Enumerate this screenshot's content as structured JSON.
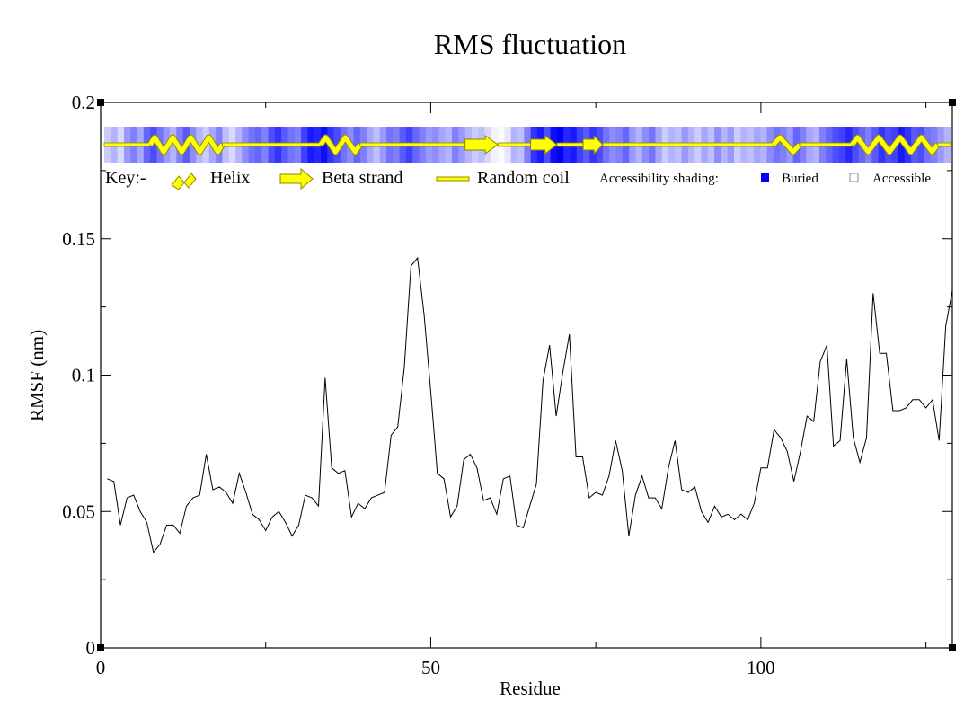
{
  "chart_data": {
    "type": "line",
    "title": "RMS fluctuation",
    "xlabel": "Residue",
    "ylabel": "RMSF (nm)",
    "xlim": [
      0,
      129
    ],
    "ylim": [
      0,
      0.2
    ],
    "x_ticks": [
      0,
      50,
      100
    ],
    "x_tick_labels": [
      "0",
      "50",
      "100"
    ],
    "y_ticks": [
      0,
      0.05,
      0.1,
      0.15,
      0.2
    ],
    "y_tick_labels": [
      "0",
      "0.05",
      "0.1",
      "0.15",
      "0.2"
    ],
    "grid": false,
    "series": [
      {
        "x": [
          1,
          2,
          3,
          4,
          5,
          6,
          7,
          8,
          9,
          10,
          11,
          12,
          13,
          14,
          15,
          16,
          17,
          18,
          19,
          20,
          21,
          22,
          23,
          24,
          25,
          26,
          27,
          28,
          29,
          30,
          31,
          32,
          33,
          34,
          35,
          36,
          37,
          38,
          39,
          40,
          41,
          42,
          43,
          44,
          45,
          46,
          47,
          48,
          49,
          50,
          51,
          52,
          53,
          54,
          55,
          56,
          57,
          58,
          59,
          60,
          61,
          62,
          63,
          64,
          65,
          66,
          67,
          68,
          69,
          70,
          71,
          72,
          73,
          74,
          75,
          76,
          77,
          78,
          79,
          80,
          81,
          82,
          83,
          84,
          85,
          86,
          87,
          88,
          89,
          90,
          91,
          92,
          93,
          94,
          95,
          96,
          97,
          98,
          99,
          100,
          101,
          102,
          103,
          104,
          105,
          106,
          107,
          108,
          109,
          110,
          111,
          112,
          113,
          114,
          115,
          116,
          117,
          118,
          119,
          120,
          121,
          122,
          123,
          124,
          125,
          126,
          127,
          128,
          129
        ],
        "y": [
          0.062,
          0.061,
          0.045,
          0.055,
          0.056,
          0.05,
          0.046,
          0.035,
          0.038,
          0.045,
          0.045,
          0.042,
          0.052,
          0.055,
          0.056,
          0.071,
          0.058,
          0.059,
          0.057,
          0.053,
          0.064,
          0.057,
          0.049,
          0.047,
          0.043,
          0.048,
          0.05,
          0.046,
          0.041,
          0.045,
          0.056,
          0.055,
          0.052,
          0.099,
          0.066,
          0.064,
          0.065,
          0.048,
          0.053,
          0.051,
          0.055,
          0.056,
          0.057,
          0.078,
          0.081,
          0.103,
          0.14,
          0.143,
          0.122,
          0.094,
          0.064,
          0.062,
          0.048,
          0.052,
          0.069,
          0.071,
          0.066,
          0.054,
          0.055,
          0.049,
          0.062,
          0.063,
          0.045,
          0.044,
          0.052,
          0.06,
          0.098,
          0.111,
          0.085,
          0.101,
          0.115,
          0.07,
          0.07,
          0.055,
          0.057,
          0.056,
          0.063,
          0.076,
          0.065,
          0.041,
          0.056,
          0.063,
          0.055,
          0.055,
          0.051,
          0.066,
          0.076,
          0.058,
          0.057,
          0.059,
          0.05,
          0.046,
          0.052,
          0.048,
          0.049,
          0.047,
          0.049,
          0.047,
          0.053,
          0.066,
          0.066,
          0.08,
          0.077,
          0.072,
          0.061,
          0.072,
          0.085,
          0.083,
          0.105,
          0.111,
          0.074,
          0.076,
          0.106,
          0.077,
          0.068,
          0.077,
          0.13,
          0.108,
          0.108,
          0.087,
          0.087,
          0.088,
          0.091,
          0.091,
          0.088,
          0.091,
          0.076,
          0.118,
          0.131
        ]
      }
    ],
    "secondary_structure": {
      "segments": [
        {
          "type": "coil",
          "start": 0,
          "end": 7
        },
        {
          "type": "helix",
          "start": 7,
          "end": 18
        },
        {
          "type": "coil",
          "start": 18,
          "end": 33
        },
        {
          "type": "helix",
          "start": 33,
          "end": 39
        },
        {
          "type": "coil",
          "start": 39,
          "end": 55
        },
        {
          "type": "strand",
          "start": 55,
          "end": 60
        },
        {
          "type": "coil",
          "start": 60,
          "end": 65
        },
        {
          "type": "strand",
          "start": 65,
          "end": 69
        },
        {
          "type": "coil",
          "start": 69,
          "end": 73
        },
        {
          "type": "strand",
          "start": 73,
          "end": 76
        },
        {
          "type": "coil",
          "start": 76,
          "end": 102
        },
        {
          "type": "helix",
          "start": 102,
          "end": 106
        },
        {
          "type": "coil",
          "start": 106,
          "end": 114
        },
        {
          "type": "helix",
          "start": 114,
          "end": 127
        },
        {
          "type": "coil",
          "start": 127,
          "end": 129
        }
      ],
      "accessibility": [
        0.2,
        0.3,
        0.15,
        0.4,
        0.5,
        0.35,
        0.6,
        0.7,
        0.55,
        0.4,
        0.3,
        0.5,
        0.65,
        0.45,
        0.3,
        0.2,
        0.35,
        0.5,
        0.25,
        0.15,
        0.3,
        0.45,
        0.55,
        0.6,
        0.5,
        0.7,
        0.8,
        0.65,
        0.55,
        0.5,
        0.75,
        0.9,
        0.85,
        0.95,
        0.8,
        0.7,
        0.55,
        0.45,
        0.6,
        0.5,
        0.35,
        0.25,
        0.4,
        0.55,
        0.5,
        0.65,
        0.75,
        0.6,
        0.5,
        0.4,
        0.45,
        0.35,
        0.3,
        0.5,
        0.4,
        0.3,
        0.2,
        0.25,
        0.15,
        0.05,
        0.02,
        0.1,
        0.3,
        0.25,
        0.5,
        0.8,
        0.9,
        0.7,
        0.95,
        1.0,
        0.85,
        0.9,
        0.75,
        0.65,
        0.8,
        0.7,
        0.55,
        0.45,
        0.5,
        0.6,
        0.4,
        0.3,
        0.45,
        0.55,
        0.35,
        0.2,
        0.3,
        0.25,
        0.4,
        0.3,
        0.2,
        0.35,
        0.25,
        0.45,
        0.3,
        0.4,
        0.2,
        0.3,
        0.25,
        0.35,
        0.3,
        0.45,
        0.55,
        0.5,
        0.4,
        0.6,
        0.5,
        0.35,
        0.3,
        0.5,
        0.6,
        0.7,
        0.75,
        0.85,
        0.7,
        0.6,
        0.5,
        0.65,
        0.8,
        0.7,
        0.75,
        0.9,
        0.8,
        0.65,
        0.7,
        0.55,
        0.5,
        0.4,
        0.3
      ]
    },
    "key": {
      "label": "Key:-",
      "helix": "Helix",
      "strand": "Beta strand",
      "coil": "Random coil",
      "shading": "Accessibility shading:",
      "buried": "Buried",
      "accessible": "Accessible"
    },
    "colors": {
      "line": "#000000",
      "structure_fill": "#ffff00",
      "structure_stroke": "#8a8a00",
      "buried": "#0000ff",
      "accessible": "#ffffff"
    }
  }
}
